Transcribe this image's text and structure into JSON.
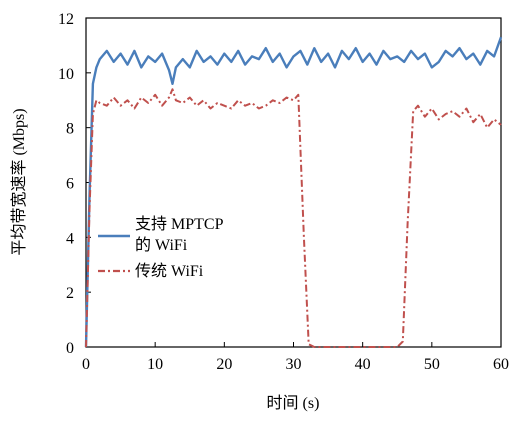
{
  "chart_data": {
    "type": "line",
    "title": "",
    "xlabel": "时间 (s)",
    "ylabel": "平均带宽速率 (Mbps)",
    "xlim": [
      0,
      60
    ],
    "ylim": [
      0,
      12
    ],
    "xticks": [
      0,
      10,
      20,
      30,
      40,
      50,
      60
    ],
    "yticks": [
      0,
      2,
      4,
      6,
      8,
      10,
      12
    ],
    "xtick_labels": [
      "0",
      "10",
      "20",
      "30",
      "40",
      "50",
      "60"
    ],
    "ytick_labels": [
      "0",
      "2",
      "4",
      "6",
      "8",
      "10",
      "12"
    ],
    "grid": false,
    "legend_position": "center-left",
    "series": [
      {
        "name": "支持 MPTCP 的 WiFi",
        "color": "#4a7ebb",
        "line_style": "solid",
        "x": [
          0,
          0.5,
          1.0,
          1.5,
          2,
          3,
          4,
          5,
          6,
          7,
          8,
          9,
          10,
          11,
          12,
          12.5,
          13,
          14,
          15,
          16,
          17,
          18,
          19,
          20,
          21,
          22,
          23,
          24,
          25,
          26,
          27,
          28,
          29,
          30,
          31,
          32,
          33,
          34,
          35,
          36,
          37,
          38,
          39,
          40,
          41,
          42,
          43,
          44,
          45,
          46,
          47,
          48,
          49,
          50,
          51,
          52,
          53,
          54,
          55,
          56,
          57,
          58,
          59,
          60
        ],
        "y": [
          0,
          5.5,
          9.6,
          10.2,
          10.5,
          10.8,
          10.4,
          10.7,
          10.3,
          10.8,
          10.2,
          10.6,
          10.4,
          10.7,
          10.1,
          9.6,
          10.2,
          10.5,
          10.2,
          10.8,
          10.4,
          10.6,
          10.3,
          10.7,
          10.4,
          10.8,
          10.3,
          10.6,
          10.5,
          10.9,
          10.4,
          10.7,
          10.2,
          10.6,
          10.8,
          10.3,
          10.9,
          10.4,
          10.7,
          10.2,
          10.8,
          10.5,
          10.9,
          10.4,
          10.7,
          10.3,
          10.8,
          10.5,
          10.6,
          10.4,
          10.8,
          10.5,
          10.7,
          10.2,
          10.4,
          10.8,
          10.6,
          10.9,
          10.5,
          10.7,
          10.3,
          10.8,
          10.6,
          11.3
        ]
      },
      {
        "name": "传统 WiFi",
        "color": "#c0504d",
        "line_style": "dash-dot",
        "x": [
          0,
          0.5,
          1.0,
          1.5,
          2,
          3,
          4,
          5,
          6,
          7,
          8,
          9,
          10,
          11,
          12,
          12.5,
          13,
          14,
          15,
          16,
          17,
          18,
          19,
          20,
          21,
          22,
          23,
          24,
          25,
          26,
          27,
          28,
          29,
          30,
          30.7,
          31.5,
          32.2,
          33,
          35,
          37,
          39,
          41,
          43,
          45,
          45.8,
          46.5,
          47.3,
          48,
          49,
          50,
          51,
          52,
          53,
          54,
          55,
          56,
          57,
          58,
          59,
          60
        ],
        "y": [
          0,
          5.0,
          8.5,
          9.0,
          8.9,
          8.8,
          9.1,
          8.8,
          9.0,
          8.7,
          9.1,
          8.9,
          9.2,
          8.8,
          9.1,
          9.4,
          9.0,
          8.9,
          9.1,
          8.8,
          9.0,
          8.7,
          8.9,
          8.8,
          8.7,
          9.0,
          8.8,
          8.9,
          8.7,
          8.8,
          9.0,
          8.9,
          9.1,
          9.0,
          9.2,
          4.0,
          0.1,
          0,
          0,
          0,
          0,
          0,
          0,
          0,
          0.2,
          4.5,
          8.6,
          8.8,
          8.4,
          8.7,
          8.3,
          8.5,
          8.6,
          8.4,
          8.7,
          8.2,
          8.5,
          8.0,
          8.3,
          8.1
        ]
      }
    ]
  },
  "legend": {
    "series1_line1": "支持 MPTCP",
    "series1_line2": "的 WiFi",
    "series2": "传统 WiFi"
  }
}
